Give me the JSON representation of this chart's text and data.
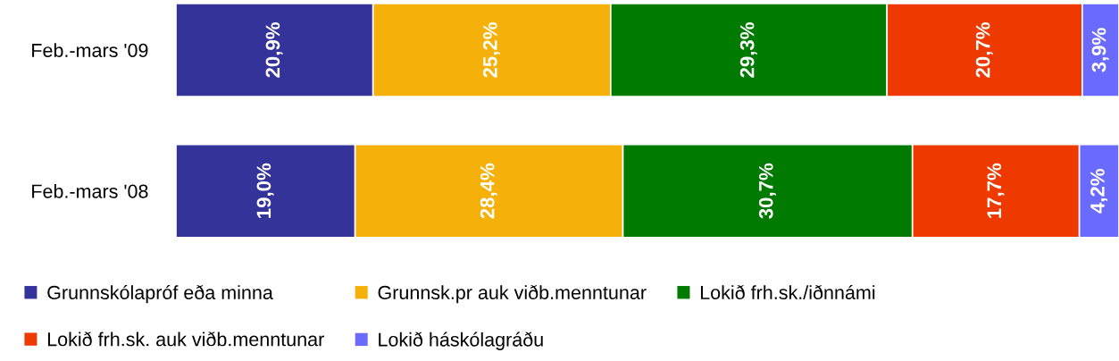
{
  "chart_data": {
    "type": "bar",
    "orientation": "horizontal",
    "stacked": true,
    "categories": [
      "Feb.-mars '09",
      "Feb.-mars '08"
    ],
    "xlim": [
      0,
      100
    ],
    "tick_labels": "y",
    "legend": "bottom",
    "series": [
      {
        "name": "Grunnskólapróf eða minna",
        "color": "#333399",
        "values": [
          20.9,
          19.0
        ],
        "value_labels": [
          "20,9%",
          "19,0%"
        ]
      },
      {
        "name": "Grunnsk.pr auk viðb.menntunar",
        "color": "#f5b10a",
        "values": [
          25.2,
          28.4
        ],
        "value_labels": [
          "25,2%",
          "28,4%"
        ]
      },
      {
        "name": "Lokið frh.sk./iðnnámi",
        "color": "#007a00",
        "values": [
          29.3,
          30.7
        ],
        "value_labels": [
          "29,3%",
          "30,7%"
        ]
      },
      {
        "name": "Lokið frh.sk. auk viðb.menntunar",
        "color": "#ee3a00",
        "values": [
          20.7,
          17.7
        ],
        "value_labels": [
          "20,7%",
          "17,7%"
        ]
      },
      {
        "name": "Lokið háskólagráðu",
        "color": "#6a6aff",
        "values": [
          3.9,
          4.2
        ],
        "value_labels": [
          "3,9%",
          "4,2%"
        ]
      }
    ]
  }
}
